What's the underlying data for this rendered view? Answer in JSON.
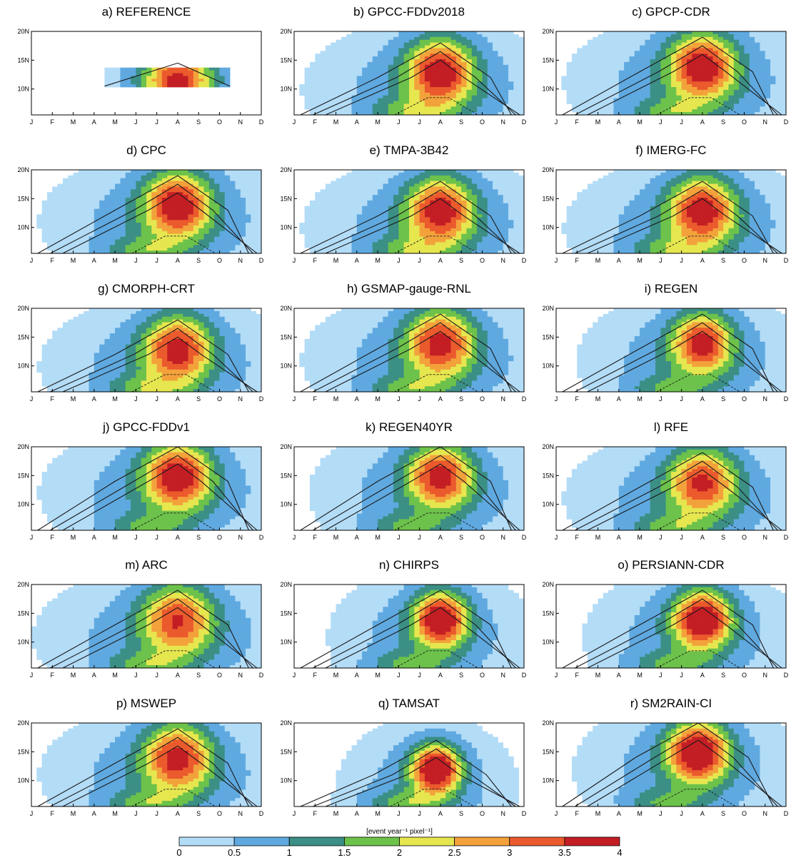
{
  "chart_data": {
    "type": "heatmap",
    "x_tick_labels": [
      "J",
      "F",
      "M",
      "A",
      "M",
      "J",
      "J",
      "A",
      "S",
      "O",
      "N",
      "D"
    ],
    "y_tick_labels": [
      "20N",
      "15N",
      "10N"
    ],
    "y_ticks": [
      20,
      15,
      10
    ],
    "ylim": [
      5.5,
      20
    ],
    "xlim": [
      1,
      12
    ],
    "colorbar": {
      "label": "[event year⁻¹ pixel⁻¹]",
      "levels": [
        "0",
        "0.5",
        "1",
        "1.5",
        "2",
        "2.5",
        "3",
        "3.5",
        "4"
      ],
      "colors": [
        "#b3dcf7",
        "#5fa9e0",
        "#3b8f85",
        "#6cc24a",
        "#e6e64f",
        "#f3a23b",
        "#eb5a2c",
        "#c41e25"
      ]
    },
    "panels": [
      {
        "title": "a) REFERENCE",
        "peak_month": 8.0,
        "peak_lat": 11.5,
        "peak_value": 2.9,
        "lat_range": [
          10.5,
          13.5
        ],
        "month_range": [
          4.5,
          10.5
        ],
        "spread": 0.45
      },
      {
        "title": "b) GPCC-FDDv2018",
        "peak_month": 8.0,
        "peak_lat": 13,
        "peak_value": 3.3,
        "spread": 1.0
      },
      {
        "title": "c) GPCP-CDR",
        "peak_month": 8.0,
        "peak_lat": 14,
        "peak_value": 3.3,
        "spread": 1.0
      },
      {
        "title": "d) CPC",
        "peak_month": 8.0,
        "peak_lat": 14,
        "peak_value": 3.3,
        "spread": 1.0
      },
      {
        "title": "e) TMPA-3B42",
        "peak_month": 8.0,
        "peak_lat": 13,
        "peak_value": 3.2,
        "spread": 1.0
      },
      {
        "title": "f) IMERG-FC",
        "peak_month": 8.0,
        "peak_lat": 13,
        "peak_value": 3.2,
        "spread": 1.0
      },
      {
        "title": "g) CMORPH-CRT",
        "peak_month": 8.0,
        "peak_lat": 13,
        "peak_value": 3.1,
        "spread": 1.0
      },
      {
        "title": "h) GSMAP-gauge-RNL",
        "peak_month": 8.0,
        "peak_lat": 14,
        "peak_value": 3.1,
        "spread": 1.0
      },
      {
        "title": "i) REGEN",
        "peak_month": 8.0,
        "peak_lat": 14,
        "peak_value": 3.1,
        "spread": 0.9
      },
      {
        "title": "j) GPCC-FDDv1",
        "peak_month": 8.0,
        "peak_lat": 15,
        "peak_value": 3.3,
        "spread": 1.0
      },
      {
        "title": "k) REGEN40YR",
        "peak_month": 8.0,
        "peak_lat": 15,
        "peak_value": 3.1,
        "spread": 0.95
      },
      {
        "title": "l) RFE",
        "peak_month": 8.0,
        "peak_lat": 14,
        "peak_value": 2.9,
        "spread": 1.0
      },
      {
        "title": "m) ARC",
        "peak_month": 8.0,
        "peak_lat": 14,
        "peak_value": 2.8,
        "spread": 1.05
      },
      {
        "title": "n) CHIRPS",
        "peak_month": 8.0,
        "peak_lat": 14,
        "peak_value": 3.6,
        "spread": 0.8
      },
      {
        "title": "o) PERSIANN-CDR",
        "peak_month": 8.0,
        "peak_lat": 14,
        "peak_value": 3.6,
        "spread": 0.85
      },
      {
        "title": "p) MSWEP",
        "peak_month": 8.0,
        "peak_lat": 14,
        "peak_value": 3.1,
        "spread": 1.0
      },
      {
        "title": "q) TAMSAT",
        "peak_month": 7.8,
        "peak_lat": 12,
        "peak_value": 3.9,
        "spread": 0.7
      },
      {
        "title": "r) SM2RAIN-CI",
        "peak_month": 7.8,
        "peak_lat": 15,
        "peak_value": 3.7,
        "spread": 0.9
      }
    ]
  }
}
